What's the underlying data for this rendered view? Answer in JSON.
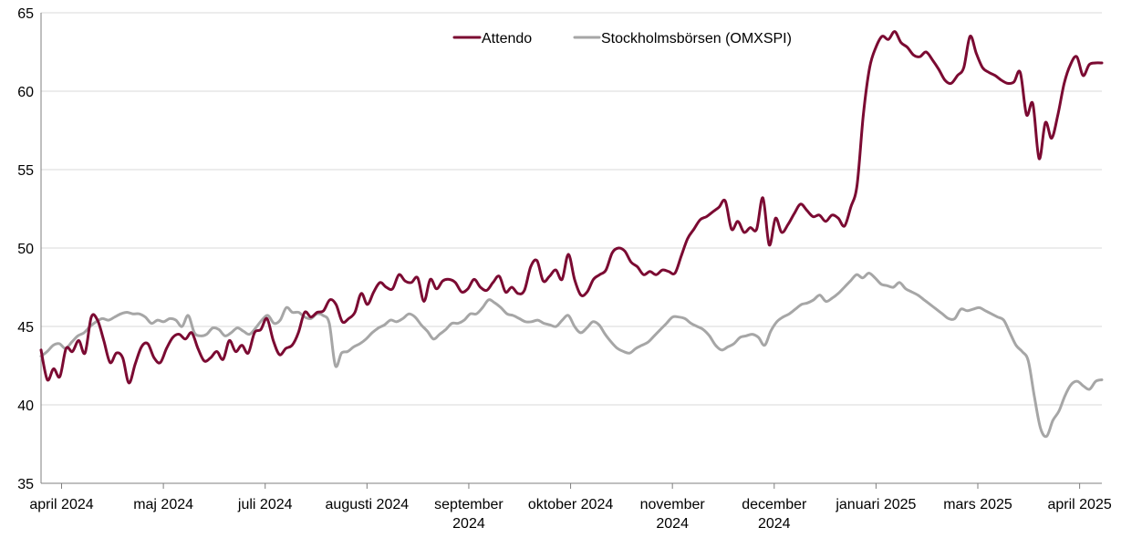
{
  "chart_data": {
    "type": "line",
    "title": "",
    "xlabel": "",
    "ylabel": "",
    "ylim": [
      35,
      65
    ],
    "y_ticks": [
      "35",
      "40",
      "45",
      "50",
      "55",
      "60",
      "65"
    ],
    "grid": true,
    "legend_position": "top-center",
    "x_ticks": [
      [
        "april 2024"
      ],
      [
        "maj 2024"
      ],
      [
        "juli 2024"
      ],
      [
        "augusti 2024"
      ],
      [
        "september",
        "2024"
      ],
      [
        "oktober 2024"
      ],
      [
        "november",
        "2024"
      ],
      [
        "december",
        "2024"
      ],
      [
        "januari 2025"
      ],
      [
        "mars 2025"
      ],
      [
        "april 2025"
      ]
    ],
    "x_tick_pos": [
      2.4,
      14.3,
      26.2,
      38.1,
      50,
      61.9,
      73.8,
      85.7,
      97.6,
      109.5,
      121.4
    ],
    "x_range": [
      0,
      124
    ],
    "series": [
      {
        "name": "Attendo",
        "color": "#7b0a32",
        "values": [
          43.5,
          41.6,
          42.3,
          41.8,
          43.6,
          43.4,
          44.1,
          43.3,
          45.6,
          45.4,
          44.1,
          42.7,
          43.3,
          43.0,
          41.4,
          42.6,
          43.7,
          43.9,
          43.0,
          42.7,
          43.6,
          44.3,
          44.5,
          44.2,
          44.6,
          43.6,
          42.8,
          43.0,
          43.4,
          42.9,
          44.1,
          43.4,
          43.8,
          43.3,
          44.6,
          44.8,
          45.5,
          44.1,
          43.2,
          43.6,
          43.8,
          44.6,
          45.9,
          45.6,
          45.9,
          46.0,
          46.7,
          46.4,
          45.3,
          45.5,
          45.9,
          47.1,
          46.4,
          47.2,
          47.8,
          47.5,
          47.4,
          48.3,
          47.9,
          47.8,
          48.1,
          46.6,
          48.0,
          47.4,
          47.9,
          48.0,
          47.8,
          47.2,
          47.4,
          48.0,
          47.5,
          47.3,
          47.8,
          48.2,
          47.2,
          47.5,
          47.1,
          47.3,
          48.8,
          49.2,
          47.9,
          48.2,
          48.6,
          48.0,
          49.6,
          48.0,
          47.0,
          47.2,
          48.0,
          48.3,
          48.6,
          49.7,
          50.0,
          49.8,
          49.1,
          48.8,
          48.3,
          48.5,
          48.3,
          48.6,
          48.5,
          48.4,
          49.5,
          50.6,
          51.2,
          51.8,
          52.0,
          52.3,
          52.6,
          53.0,
          51.2,
          51.7,
          51.0,
          51.3,
          51.2,
          53.2,
          50.2,
          51.9,
          51.0,
          51.5,
          52.2,
          52.8,
          52.4,
          52.0,
          52.1,
          51.7,
          52.1,
          51.9,
          51.4,
          52.6,
          54.0,
          58.5,
          61.5,
          62.8,
          63.5,
          63.3,
          63.8,
          63.1,
          62.8,
          62.3,
          62.2,
          62.5,
          62.0,
          61.4,
          60.7,
          60.5,
          61.0,
          61.5,
          63.5,
          62.4,
          61.5,
          61.2,
          61.0,
          60.7,
          60.5,
          60.6,
          61.2,
          58.5,
          59.2,
          55.7,
          58.0,
          57.0,
          58.5,
          60.5,
          61.7,
          62.2,
          61.0,
          61.7,
          61.8,
          61.8
        ]
      },
      {
        "name": "Stockholmsbörsen (OMXSPI)",
        "color": "#a6a6a6",
        "values": [
          43.1,
          43.4,
          43.8,
          43.9,
          43.6,
          44.0,
          44.4,
          44.6,
          45.0,
          45.3,
          45.5,
          45.4,
          45.6,
          45.8,
          45.9,
          45.8,
          45.8,
          45.6,
          45.2,
          45.4,
          45.3,
          45.5,
          45.4,
          45.0,
          45.7,
          44.6,
          44.4,
          44.5,
          44.9,
          44.8,
          44.4,
          44.6,
          44.9,
          44.7,
          44.5,
          44.9,
          45.4,
          45.7,
          45.2,
          45.4,
          46.2,
          45.9,
          45.9,
          45.6,
          45.5,
          45.8,
          45.7,
          45.2,
          42.5,
          43.3,
          43.4,
          43.7,
          43.9,
          44.2,
          44.6,
          44.9,
          45.1,
          45.4,
          45.3,
          45.5,
          45.8,
          45.6,
          45.1,
          44.7,
          44.2,
          44.5,
          44.8,
          45.2,
          45.2,
          45.4,
          45.8,
          45.8,
          46.2,
          46.7,
          46.5,
          46.2,
          45.8,
          45.7,
          45.5,
          45.3,
          45.3,
          45.4,
          45.2,
          45.1,
          45.0,
          45.4,
          45.7,
          45.0,
          44.6,
          44.9,
          45.3,
          45.1,
          44.5,
          44.0,
          43.6,
          43.4,
          43.3,
          43.6,
          43.8,
          44.0,
          44.4,
          44.8,
          45.2,
          45.6,
          45.6,
          45.5,
          45.2,
          45.0,
          44.8,
          44.4,
          43.8,
          43.5,
          43.7,
          43.9,
          44.3,
          44.4,
          44.5,
          44.3,
          43.8,
          44.7,
          45.3,
          45.6,
          45.8,
          46.1,
          46.4,
          46.5,
          46.7,
          47.0,
          46.6,
          46.8,
          47.1,
          47.5,
          47.9,
          48.3,
          48.1,
          48.4,
          48.1,
          47.7,
          47.6,
          47.5,
          47.8,
          47.4,
          47.2,
          47.0,
          46.7,
          46.4,
          46.1,
          45.8,
          45.5,
          45.5,
          46.1,
          46.0,
          46.1,
          46.2,
          46.0,
          45.8,
          45.6,
          45.4,
          44.6,
          43.8,
          43.4,
          42.8,
          40.5,
          38.5,
          38.0,
          39.0,
          39.6,
          40.6,
          41.3,
          41.5,
          41.2,
          41.0,
          41.5,
          41.6
        ]
      }
    ]
  }
}
